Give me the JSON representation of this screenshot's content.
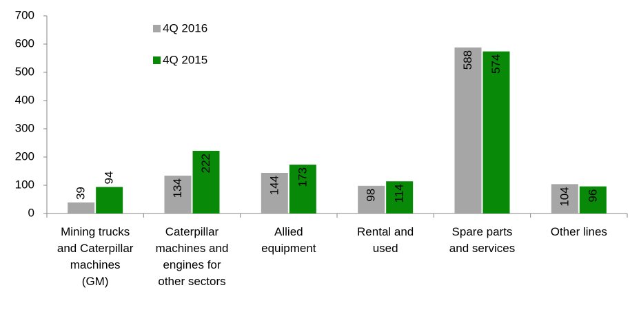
{
  "chart_data": {
    "type": "bar",
    "categories": [
      "Mining trucks and Caterpillar machines (GM)",
      "Caterpillar machines and engines for other sectors",
      "Allied equipment",
      "Rental and used",
      "Spare parts and services",
      "Other lines"
    ],
    "series": [
      {
        "name": "4Q 2016",
        "color": "#a6a6a6",
        "values": [
          39,
          134,
          144,
          98,
          588,
          104
        ]
      },
      {
        "name": "4Q 2015",
        "color": "#088a08",
        "values": [
          94,
          222,
          173,
          114,
          574,
          96
        ]
      }
    ],
    "ylim": [
      0,
      700
    ],
    "yticks": [
      0,
      100,
      200,
      300,
      400,
      500,
      600,
      700
    ],
    "grid": false,
    "legend": "top-left"
  }
}
